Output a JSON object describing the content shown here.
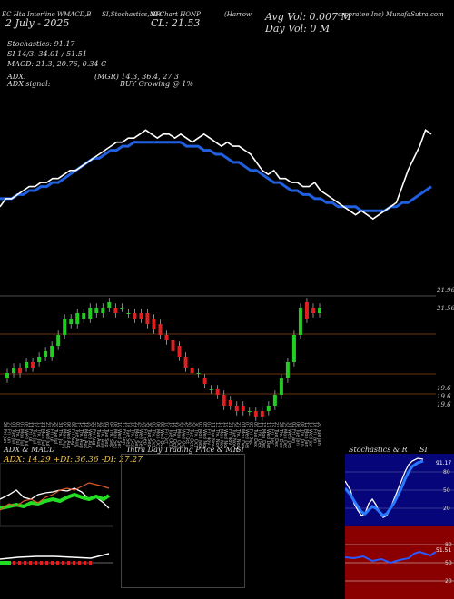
{
  "header": {
    "code": "EC Hta Interline WMACD,B",
    "date": "2 July - 2025",
    "stoch_title": "SI,Stochastics,MR",
    "close_label": "CL: 21.53",
    "symbol": "SI Chart HONP",
    "company": "(Harrow",
    "company_tail": "crporatee Inc) MunafaSutra.com",
    "avg_vol": "Avg Vol: 0.007 M",
    "day_vol": "Day Vol: 0   M"
  },
  "indicators": {
    "stochastics": "Stochastics: 91.17",
    "si": "SI  14/3: 34.01 / 51.51",
    "macd": "MACD: 21.3,  20.76,  0.34  C",
    "adx": "ADX:",
    "mgr": "(MGR) 14.3,  36.4,  27.3",
    "adx_signal": "ADX  signal:",
    "buy_signal": "BUY Growing @ 1%"
  },
  "price_labels": {
    "top": "21.96",
    "r1": "21.56",
    "r2": "19.6",
    "r3": "19.6",
    "r4": "19.6"
  },
  "dates": [
    "25 Fri Jun",
    "27 Fri Jun",
    "01 Tue Jul",
    "03 Thu Jul",
    "07 Mon Jul",
    "09 Wed Jul",
    "11 Fri Jul",
    "15 Tue Jul",
    "17 Thu Jul",
    "21 Mon Jul",
    "23 Wed Jul",
    "25 Fri Jul",
    "29 Tue Jul",
    "31 Thu Jul",
    "04 Mon Aug",
    "06 Wed Aug",
    "08 Fri Aug",
    "12 Tue Aug",
    "14 Thu Aug",
    "18 Mon Aug",
    "20 Wed Aug",
    "22 Fri Aug",
    "26 Tue Aug",
    "28 Thu Aug",
    "02 Tue Sep",
    "04 Thu Sep",
    "08 Mon Sep",
    "10 Wed Sep",
    "12 Fri Sep",
    "16 Tue Sep",
    "18 Thu Sep",
    "22 Mon Sep",
    "24 Wed Sep",
    "26 Fri Sep",
    "30 Tue Sep",
    "02 Thu Oct",
    "06 Mon Oct",
    "08 Wed Oct",
    "10 Fri Oct",
    "14 Tue Oct",
    "16 Thu Oct",
    "20 Mon Oct",
    "22 Wed Oct",
    "24 Fri Oct",
    "28 Tue Oct",
    "30 Thu Oct",
    "03 Mon Nov",
    "05 Wed Nov",
    "07 Fri Nov",
    "11 Tue Nov",
    "13 Thu Nov",
    "17 Mon Nov",
    "19 Wed Nov",
    "21 Fri Nov",
    "25 Tue Nov",
    "27 Thu Nov",
    "01 Mon Dec",
    "03 Wed Dec",
    "05 Fri Dec",
    "09 Tue Dec",
    "11 Thu Dec",
    "15 Mon Dec",
    "17 Wed Dec",
    "19 Fri Dec",
    "23 Tue Dec",
    "25 Thu Dec",
    "29 Mon Dec",
    "31 Wed Dec",
    "02 Fri Jan",
    "06 Tue Jan",
    "08 Thu Jan",
    "12 Mon Jan",
    "14 Wed Jan",
    "16 Fri Jan",
    "20 Tue Jan"
  ],
  "panels": {
    "adx_title": "ADX  & MACD",
    "adx_values": "ADX: 14.29  +DI: 36.36  -DI: 27.27",
    "intra_title": "Intra  Day Trading Price  & MR",
    "intra_si": "SI",
    "stoch_title": "Stochastics & R",
    "stoch_si": "SI",
    "stoch_levels": [
      "80",
      "50",
      "20"
    ],
    "stoch_value": "91.17",
    "rsi_levels": [
      "80",
      "50",
      "20"
    ],
    "rsi_value": "51.51"
  },
  "chart_data": [
    {
      "type": "line",
      "name": "price",
      "series": [
        {
          "values": [
            19.7,
            19.9,
            19.9,
            20.0,
            20.1,
            20.2,
            20.2,
            20.3,
            20.3,
            20.4,
            20.4,
            20.5,
            20.6,
            20.6,
            20.7,
            20.8,
            20.9,
            21.0,
            21.1,
            21.2,
            21.3,
            21.3,
            21.4,
            21.4,
            21.5,
            21.6,
            21.5,
            21.4,
            21.5,
            21.5,
            21.4,
            21.5,
            21.4,
            21.3,
            21.4,
            21.5,
            21.4,
            21.3,
            21.2,
            21.3,
            21.2,
            21.2,
            21.1,
            21.0,
            20.8,
            20.6,
            20.5,
            20.6,
            20.4,
            20.4,
            20.3,
            20.3,
            20.2,
            20.2,
            20.3,
            20.1,
            20.0,
            19.9,
            19.8,
            19.7,
            19.6,
            19.5,
            19.6,
            19.5,
            19.4,
            19.5,
            19.6,
            19.7,
            19.8,
            20.2,
            20.6,
            20.9,
            21.2,
            21.6,
            21.5
          ]
        },
        {
          "values": [
            19.9,
            19.9,
            19.9,
            20.0,
            20.0,
            20.1,
            20.1,
            20.2,
            20.2,
            20.3,
            20.3,
            20.4,
            20.5,
            20.6,
            20.7,
            20.8,
            20.9,
            20.9,
            21.0,
            21.1,
            21.1,
            21.2,
            21.2,
            21.3,
            21.3,
            21.3,
            21.3,
            21.3,
            21.3,
            21.3,
            21.3,
            21.3,
            21.2,
            21.2,
            21.2,
            21.1,
            21.1,
            21.0,
            21.0,
            20.9,
            20.8,
            20.8,
            20.7,
            20.6,
            20.6,
            20.5,
            20.4,
            20.3,
            20.3,
            20.2,
            20.1,
            20.1,
            20.0,
            20.0,
            19.9,
            19.9,
            19.8,
            19.8,
            19.7,
            19.7,
            19.7,
            19.7,
            19.6,
            19.6,
            19.6,
            19.6,
            19.6,
            19.7,
            19.7,
            19.8,
            19.8,
            19.9,
            20.0,
            20.1,
            20.2
          ]
        }
      ]
    },
    {
      "type": "bar",
      "name": "candles",
      "categories": [
        "1",
        "2",
        "3",
        "4",
        "5",
        "6",
        "7",
        "8",
        "9",
        "10",
        "11",
        "12",
        "13",
        "14",
        "15",
        "16",
        "17",
        "18",
        "19",
        "20",
        "21",
        "22",
        "23",
        "24",
        "25",
        "26",
        "27",
        "28",
        "29",
        "30",
        "31",
        "32",
        "33",
        "34",
        "35",
        "36",
        "37",
        "38",
        "39",
        "40",
        "41",
        "42",
        "43",
        "44",
        "45",
        "46",
        "47",
        "48",
        "49",
        "50"
      ],
      "series": [
        {
          "name": "open",
          "values": [
            20.2,
            20.3,
            20.4,
            20.4,
            20.5,
            20.5,
            20.6,
            20.6,
            20.8,
            21.0,
            21.2,
            21.2,
            21.3,
            21.3,
            21.4,
            21.4,
            21.5,
            21.5,
            21.5,
            21.4,
            21.4,
            21.4,
            21.4,
            21.3,
            21.2,
            21.0,
            20.9,
            20.8,
            20.6,
            20.4,
            20.3,
            20.2,
            20.0,
            20.0,
            19.9,
            19.8,
            19.7,
            19.7,
            19.6,
            19.6,
            19.6,
            19.6,
            19.7,
            19.9,
            20.2,
            20.5,
            21.0,
            21.6,
            21.5,
            21.4
          ]
        },
        {
          "name": "close",
          "values": [
            20.3,
            20.4,
            20.3,
            20.5,
            20.4,
            20.6,
            20.7,
            20.8,
            21.0,
            21.3,
            21.3,
            21.4,
            21.4,
            21.5,
            21.5,
            21.5,
            21.6,
            21.4,
            21.5,
            21.4,
            21.3,
            21.3,
            21.2,
            21.1,
            21.0,
            20.9,
            20.7,
            20.6,
            20.4,
            20.3,
            20.3,
            20.1,
            20.0,
            19.9,
            19.7,
            19.7,
            19.6,
            19.6,
            19.6,
            19.5,
            19.5,
            19.7,
            19.9,
            20.2,
            20.5,
            21.0,
            21.5,
            21.3,
            21.4,
            21.5
          ]
        }
      ],
      "ylim": [
        19.4,
        21.9
      ]
    }
  ]
}
